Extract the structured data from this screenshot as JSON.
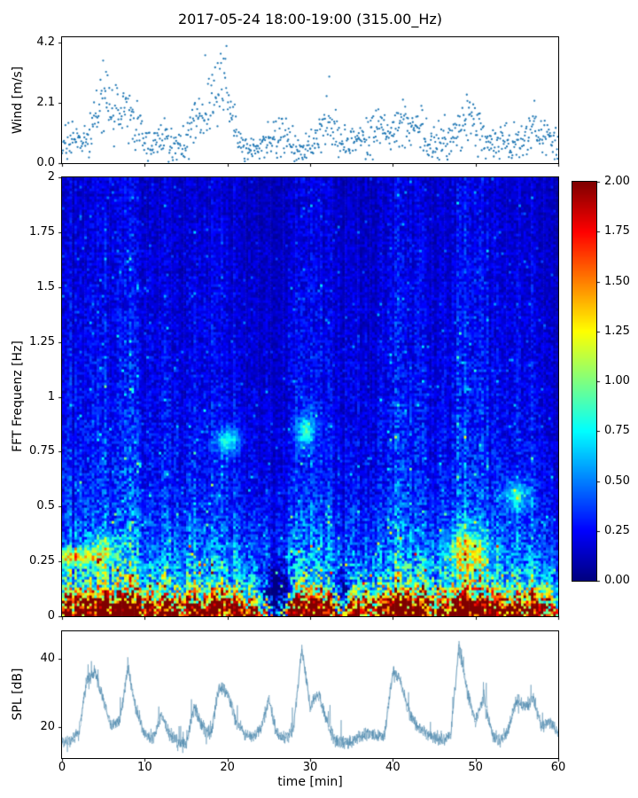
{
  "figure": {
    "title": "2017-05-24 18:00-19:00 (315.00_Hz)",
    "background": "#ffffff",
    "axes_color": "#000000"
  },
  "chart_data": [
    {
      "type": "scatter",
      "name": "wind-speed",
      "ylabel": "Wind [m/s]",
      "ylim": [
        0.0,
        4.4
      ],
      "yticks": [
        0.0,
        2.1,
        4.2
      ],
      "yticklabels": [
        "0.0",
        "2.1",
        "4.2"
      ],
      "xlim": [
        0,
        60
      ],
      "marker_color": "#1f77b4",
      "points_per_minute": 15,
      "mean_values": [
        0.6,
        0.7,
        0.8,
        0.9,
        1.5,
        2.2,
        1.8,
        1.5,
        1.7,
        1.3,
        0.8,
        0.6,
        0.9,
        0.7,
        0.6,
        1.0,
        1.4,
        1.8,
        2.2,
        2.8,
        2.0,
        1.2,
        0.5,
        0.4,
        0.6,
        0.8,
        0.9,
        0.8,
        0.5,
        0.4,
        0.6,
        1.0,
        1.3,
        0.9,
        0.6,
        0.7,
        0.9,
        1.0,
        1.1,
        1.0,
        1.2,
        1.4,
        1.3,
        1.2,
        0.8,
        0.6,
        0.9,
        1.1,
        1.3,
        1.6,
        1.4,
        0.9,
        0.7,
        0.8,
        0.6,
        0.7,
        1.0,
        1.3,
        0.9,
        0.8
      ]
    },
    {
      "type": "heatmap",
      "name": "fft-spectrogram",
      "ylabel": "FFT Frequenz [Hz]",
      "ylim": [
        0,
        2
      ],
      "yticks": [
        0,
        0.25,
        0.5,
        0.75,
        1,
        1.25,
        1.5,
        1.75,
        2
      ],
      "yticklabels": [
        "0",
        "0.25",
        "0.5",
        "0.75",
        "1",
        "1.25",
        "1.5",
        "1.75",
        "2"
      ],
      "xlim": [
        0,
        60
      ],
      "colormap": "jet",
      "clim": [
        0,
        2
      ],
      "colorbar_ticks": [
        0,
        0.25,
        0.5,
        0.75,
        1,
        1.25,
        1.5,
        1.75,
        2
      ],
      "colorbar_ticklabels": [
        "0.00",
        "0.25",
        "0.50",
        "0.75",
        "1.00",
        "1.25",
        "1.50",
        "1.75",
        "2.00"
      ],
      "freq_profile_hz_step": 0.05,
      "freq_profile": [
        2.3,
        1.9,
        1.1,
        0.75,
        0.6,
        0.5,
        0.45,
        0.4,
        0.36,
        0.33,
        0.3,
        0.28,
        0.27,
        0.26,
        0.25,
        0.24,
        0.24,
        0.23,
        0.22,
        0.22,
        0.21,
        0.21,
        0.2,
        0.2,
        0.2,
        0.19,
        0.19,
        0.19,
        0.18,
        0.18,
        0.18,
        0.17,
        0.17,
        0.17,
        0.16,
        0.16,
        0.16,
        0.15,
        0.15,
        0.15,
        0.15
      ],
      "time_profile_min_step": 1,
      "time_profile": [
        1.1,
        1.15,
        1.1,
        1.0,
        1.2,
        1.35,
        1.1,
        1.2,
        1.4,
        1.2,
        0.95,
        1.0,
        1.2,
        1.0,
        0.9,
        1.05,
        1.25,
        1.1,
        1.15,
        1.3,
        1.2,
        1.0,
        0.85,
        0.8,
        0.9,
        0.75,
        0.6,
        0.9,
        1.0,
        1.45,
        1.25,
        1.1,
        1.15,
        0.95,
        0.8,
        0.85,
        0.9,
        0.95,
        0.9,
        0.95,
        1.2,
        1.4,
        1.15,
        1.05,
        1.1,
        0.9,
        0.95,
        1.0,
        1.5,
        1.55,
        1.3,
        1.2,
        1.25,
        1.0,
        0.95,
        1.15,
        1.05,
        1.1,
        0.95,
        1.0,
        0.95
      ],
      "hotspots": [
        {
          "t": 1.2,
          "f": 0.27,
          "tw": 2.0,
          "fw": 0.025,
          "amp": 0.85
        },
        {
          "t": 5.0,
          "f": 0.3,
          "tw": 1.2,
          "fw": 0.05,
          "amp": 0.5
        },
        {
          "t": 20.0,
          "f": 0.8,
          "tw": 1.0,
          "fw": 0.04,
          "amp": 0.55
        },
        {
          "t": 29.5,
          "f": 0.85,
          "tw": 0.8,
          "fw": 0.05,
          "amp": 0.55
        },
        {
          "t": 49.0,
          "f": 0.3,
          "tw": 1.8,
          "fw": 0.07,
          "amp": 0.6
        },
        {
          "t": 55.0,
          "f": 0.55,
          "tw": 1.2,
          "fw": 0.05,
          "amp": 0.45
        },
        {
          "t": 26.0,
          "f": 0.05,
          "tw": 1.2,
          "fw": 0.1,
          "amp": -1.2
        },
        {
          "t": 33.8,
          "f": 0.06,
          "tw": 0.8,
          "fw": 0.08,
          "amp": -0.8
        }
      ]
    },
    {
      "type": "line",
      "name": "spl",
      "ylabel": "SPL [dB]",
      "xlabel": "time [min]",
      "ylim": [
        11,
        48
      ],
      "yticks": [
        20,
        40
      ],
      "yticklabels": [
        "20",
        "40"
      ],
      "xticks": [
        0,
        10,
        20,
        30,
        40,
        50,
        60
      ],
      "xticklabels": [
        "0",
        "10",
        "20",
        "30",
        "40",
        "50",
        "60"
      ],
      "line_color": "#3d7ea6",
      "minute_values": [
        15,
        16,
        18,
        34,
        36,
        28,
        20,
        22,
        37,
        24,
        18,
        17,
        24,
        18,
        16,
        15,
        26,
        20,
        18,
        32,
        30,
        22,
        18,
        17,
        19,
        28,
        18,
        17,
        20,
        43,
        26,
        30,
        22,
        16,
        15,
        16,
        17,
        18,
        17,
        18,
        36,
        33,
        24,
        20,
        18,
        17,
        16,
        18,
        44,
        30,
        22,
        29,
        18,
        16,
        20,
        28,
        26,
        28,
        20,
        22,
        18
      ]
    }
  ]
}
